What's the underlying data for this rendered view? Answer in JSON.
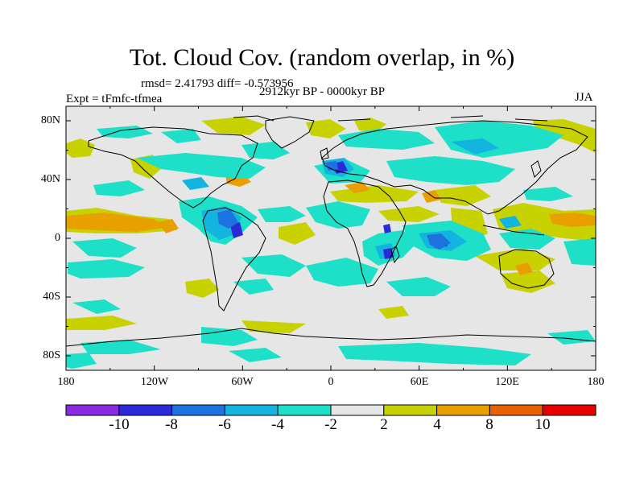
{
  "header": {
    "title": "Tot. Cloud Cov. (random overlap, in %)",
    "stats": "rmsd= 2.41793 diff= -0.573956",
    "period": "2912kyr BP - 0000kyr BP",
    "experiment": "Expt = tFmfc-tfmea",
    "season": "JJA"
  },
  "map": {
    "x_ticks": [
      "180",
      "120W",
      "60W",
      "0",
      "60E",
      "120E",
      "180"
    ],
    "y_ticks": [
      "80N",
      "40N",
      "0",
      "40S",
      "80S"
    ],
    "background_color": "#e6e6e6"
  },
  "colorbar": {
    "labels": [
      "-10",
      "-8",
      "-6",
      "-4",
      "-2",
      "2",
      "4",
      "8",
      "10"
    ],
    "colors": [
      "#8a2be2",
      "#2a2ad8",
      "#1e72e0",
      "#14b4e0",
      "#1ee0c8",
      "#e6e6e6",
      "#c8d200",
      "#e8a000",
      "#e86000",
      "#e60000"
    ]
  }
}
